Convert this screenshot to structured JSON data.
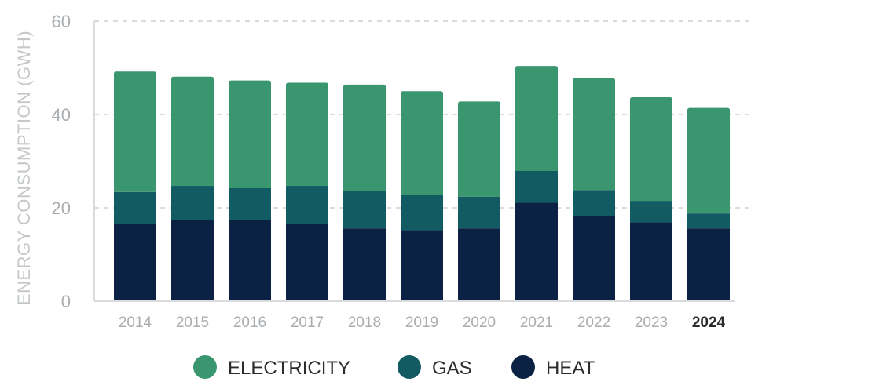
{
  "chart_data": {
    "type": "bar",
    "stacked": true,
    "title": "",
    "xlabel": "",
    "ylabel": "ENERGY CONSUMPTION (GWH)",
    "ylim": [
      0,
      60
    ],
    "yticks": [
      0,
      20,
      40,
      60
    ],
    "grid": true,
    "legend_position": "bottom",
    "highlight_category": "2024",
    "categories": [
      "2014",
      "2015",
      "2016",
      "2017",
      "2018",
      "2019",
      "2020",
      "2021",
      "2022",
      "2023",
      "2024"
    ],
    "series": [
      {
        "name": "HEAT",
        "color": "#0b2245",
        "values": [
          16.5,
          17.4,
          17.4,
          16.5,
          15.6,
          15.2,
          15.6,
          21.1,
          18.3,
          16.9,
          15.6
        ]
      },
      {
        "name": "GAS",
        "color": "#135b63",
        "values": [
          6.9,
          7.3,
          6.8,
          8.2,
          8.1,
          7.6,
          6.8,
          6.8,
          5.5,
          4.6,
          3.2
        ]
      },
      {
        "name": "ELECTRICITY",
        "color": "#3a966f",
        "values": [
          25.8,
          23.4,
          23.1,
          22.1,
          22.7,
          22.2,
          20.4,
          22.5,
          24.0,
          22.2,
          22.6
        ]
      }
    ],
    "legend_order": [
      "ELECTRICITY",
      "GAS",
      "HEAT"
    ],
    "colors": {
      "axis": "#d9dbdc",
      "grid": "#d9dbdc",
      "tick": "#a9adb0",
      "highlight_tick": "#2b2b2b"
    }
  }
}
